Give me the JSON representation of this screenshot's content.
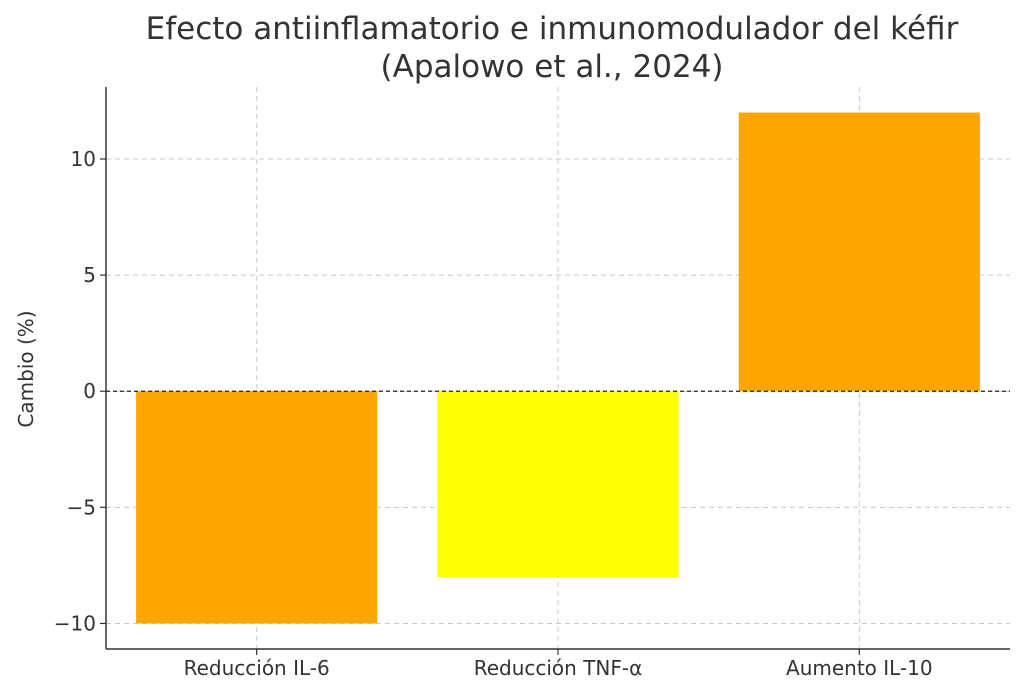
{
  "chart_data": {
    "type": "bar",
    "title": "Efecto antiinflamatorio e inmunomodulador del kéfir\n(Apalowo et al., 2024)",
    "title_lines": [
      "Efecto antiinflamatorio e inmunomodulador del kéfir",
      "(Apalowo et al., 2024)"
    ],
    "xlabel": "",
    "ylabel": "Cambio (%)",
    "categories": [
      "Reducción IL-6",
      "Reducción TNF-α",
      "Aumento IL-10"
    ],
    "values": [
      -10,
      -8,
      12
    ],
    "colors": [
      "#FFA500",
      "#FFFF00",
      "#FFA500"
    ],
    "ylim": [
      -11.1,
      13.1
    ],
    "yticks": [
      -10,
      -5,
      0,
      5,
      10
    ],
    "ytick_labels": [
      "−10",
      "−5",
      "0",
      "5",
      "10"
    ],
    "grid": true,
    "zero_line": true
  }
}
